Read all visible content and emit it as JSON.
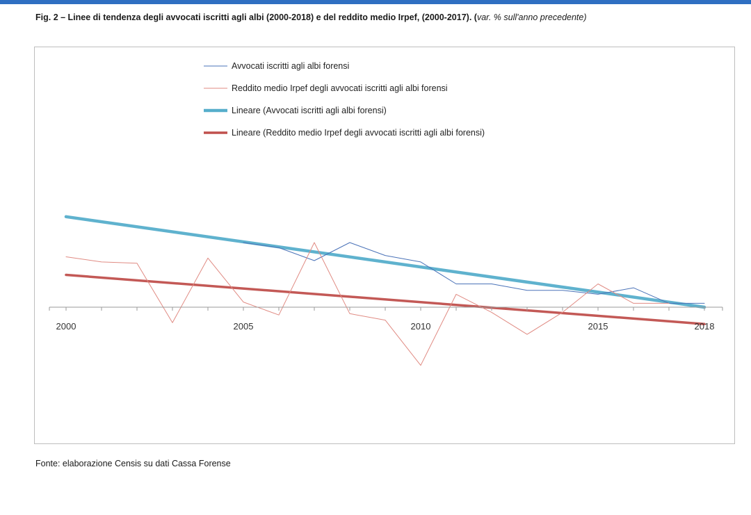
{
  "figure": {
    "caption_bold": "Fig. 2 – Linee di tendenza degli avvocati iscritti agli albi (2000-2018) e del reddito medio Irpef, (2000-2017). (",
    "caption_italic": "var. % sull'anno precedente)",
    "source": "Fonte: elaborazione Censis su dati Cassa Forense"
  },
  "colors": {
    "avvocati": "#4a72b8",
    "reddito": "#e08a82",
    "trend_avvocati": "#56aecb",
    "trend_reddito": "#c0504d",
    "axis": "#9a9a9a",
    "topbar": "#2f6fc2"
  },
  "chart_data": {
    "type": "line",
    "title": "",
    "xlabel": "",
    "ylabel": "",
    "x_tick_labels": [
      "2000",
      "2005",
      "2010",
      "2015",
      "2018"
    ],
    "x_tick_years": [
      2000,
      2005,
      2010,
      2015,
      2018
    ],
    "xlim": [
      2000,
      2018
    ],
    "ylim": [
      -7.5,
      14
    ],
    "grid": false,
    "legend_position": "top",
    "series": [
      {
        "name": "Avvocati iscritti agli albi forensi",
        "kind": "line",
        "x": [
          2005,
          2006,
          2007,
          2008,
          2009,
          2010,
          2011,
          2012,
          2013,
          2014,
          2015,
          2016,
          2017,
          2018
        ],
        "values": [
          5.0,
          4.6,
          3.6,
          5.0,
          4.0,
          3.5,
          1.8,
          1.8,
          1.3,
          1.3,
          1.0,
          1.5,
          0.3,
          0.3
        ]
      },
      {
        "name": "Reddito medio Irpef degli avvocati iscritti agli albi forensi",
        "kind": "line",
        "x": [
          2000,
          2001,
          2002,
          2003,
          2004,
          2005,
          2006,
          2007,
          2008,
          2009,
          2010,
          2011,
          2012,
          2013,
          2014,
          2015,
          2016,
          2017
        ],
        "values": [
          3.9,
          3.5,
          3.4,
          -1.2,
          3.8,
          0.4,
          -0.6,
          5.0,
          -0.5,
          -1.0,
          -4.5,
          1.0,
          -0.4,
          -2.1,
          -0.4,
          1.8,
          0.3,
          0.3
        ]
      },
      {
        "name": "Lineare (Avvocati iscritti agli albi forensi)",
        "kind": "trend",
        "x": [
          2000,
          2018
        ],
        "values": [
          7.0,
          0.0
        ]
      },
      {
        "name": "Lineare (Reddito medio Irpef degli avvocati iscritti agli albi forensi)",
        "kind": "trend",
        "x": [
          2000,
          2018
        ],
        "values": [
          2.5,
          -1.3
        ]
      }
    ]
  }
}
